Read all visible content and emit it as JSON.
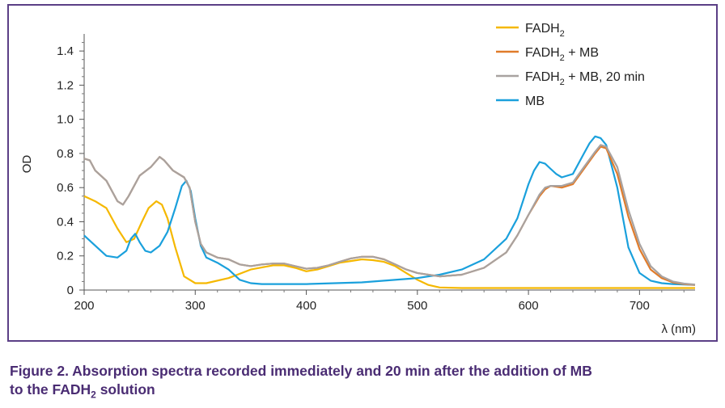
{
  "caption": {
    "line1": "Figure 2. Absorption spectra recorded immediately and 20 min after the addition of MB",
    "line2_prefix": "to the FADH",
    "line2_sub": "2",
    "line2_suffix": " solution"
  },
  "legend": [
    {
      "main": "FADH",
      "sub": "2",
      "rest": ""
    },
    {
      "main": "FADH",
      "sub": "2",
      "rest": " + MB"
    },
    {
      "main": "FADH",
      "sub": "2",
      "rest": " + MB, 20 min"
    },
    {
      "main": "MB",
      "sub": "",
      "rest": ""
    }
  ],
  "chart_data": {
    "type": "line",
    "title": "",
    "xlabel": "λ (nm)",
    "ylabel": "OD",
    "xlim": [
      200,
      750
    ],
    "ylim": [
      0,
      1.5
    ],
    "xticks": [
      "200",
      "300",
      "400",
      "500",
      "600",
      "700"
    ],
    "yticks": [
      "0",
      "0.2",
      "0.4",
      "0.6",
      "0.8",
      "1.0",
      "1.2",
      "1.4"
    ],
    "grid": false,
    "legend_position": "top-right",
    "series": [
      {
        "name": "FADH2",
        "color": "#f5b800",
        "x": [
          200,
          210,
          220,
          230,
          238,
          245,
          252,
          258,
          265,
          270,
          275,
          282,
          290,
          300,
          310,
          330,
          350,
          370,
          380,
          390,
          400,
          410,
          420,
          430,
          440,
          450,
          460,
          470,
          480,
          490,
          500,
          510,
          520,
          540,
          600,
          700,
          750
        ],
        "y": [
          0.55,
          0.52,
          0.48,
          0.36,
          0.28,
          0.3,
          0.4,
          0.48,
          0.52,
          0.5,
          0.42,
          0.25,
          0.08,
          0.04,
          0.04,
          0.07,
          0.12,
          0.145,
          0.145,
          0.13,
          0.11,
          0.12,
          0.14,
          0.16,
          0.17,
          0.18,
          0.175,
          0.165,
          0.14,
          0.1,
          0.06,
          0.03,
          0.015,
          0.012,
          0.012,
          0.012,
          0.012
        ]
      },
      {
        "name": "FADH2 + MB",
        "color": "#e07b2a",
        "x": [
          200,
          205,
          210,
          220,
          230,
          235,
          240,
          250,
          260,
          268,
          272,
          280,
          290,
          295,
          300,
          305,
          310,
          320,
          330,
          340,
          350,
          360,
          370,
          380,
          390,
          400,
          410,
          420,
          430,
          440,
          450,
          460,
          470,
          480,
          490,
          500,
          520,
          540,
          560,
          580,
          590,
          600,
          610,
          615,
          620,
          630,
          640,
          650,
          660,
          665,
          670,
          680,
          690,
          700,
          710,
          720,
          730,
          740,
          750
        ],
        "y": [
          0.77,
          0.76,
          0.7,
          0.64,
          0.52,
          0.5,
          0.55,
          0.67,
          0.72,
          0.78,
          0.76,
          0.7,
          0.66,
          0.6,
          0.4,
          0.27,
          0.22,
          0.19,
          0.18,
          0.15,
          0.14,
          0.15,
          0.155,
          0.155,
          0.14,
          0.125,
          0.13,
          0.145,
          0.165,
          0.185,
          0.195,
          0.195,
          0.18,
          0.15,
          0.12,
          0.1,
          0.08,
          0.09,
          0.13,
          0.22,
          0.32,
          0.44,
          0.55,
          0.59,
          0.61,
          0.6,
          0.62,
          0.71,
          0.8,
          0.84,
          0.83,
          0.68,
          0.43,
          0.24,
          0.12,
          0.07,
          0.045,
          0.035,
          0.03
        ]
      },
      {
        "name": "FADH2 + MB, 20 min",
        "color": "#a8a2a0",
        "x": [
          200,
          205,
          210,
          220,
          230,
          235,
          240,
          250,
          260,
          268,
          272,
          280,
          290,
          295,
          300,
          305,
          310,
          320,
          330,
          340,
          350,
          360,
          370,
          380,
          390,
          400,
          410,
          420,
          430,
          440,
          450,
          460,
          470,
          480,
          490,
          500,
          520,
          540,
          560,
          580,
          590,
          600,
          610,
          615,
          620,
          630,
          640,
          650,
          660,
          665,
          670,
          680,
          690,
          700,
          710,
          720,
          730,
          740,
          750
        ],
        "y": [
          0.77,
          0.76,
          0.7,
          0.64,
          0.52,
          0.5,
          0.55,
          0.67,
          0.72,
          0.78,
          0.76,
          0.7,
          0.66,
          0.6,
          0.4,
          0.27,
          0.22,
          0.19,
          0.18,
          0.15,
          0.14,
          0.15,
          0.155,
          0.155,
          0.14,
          0.125,
          0.13,
          0.145,
          0.165,
          0.185,
          0.195,
          0.195,
          0.18,
          0.15,
          0.12,
          0.1,
          0.08,
          0.09,
          0.13,
          0.22,
          0.32,
          0.44,
          0.56,
          0.6,
          0.61,
          0.61,
          0.63,
          0.72,
          0.81,
          0.85,
          0.84,
          0.72,
          0.47,
          0.27,
          0.14,
          0.08,
          0.05,
          0.038,
          0.032
        ]
      },
      {
        "name": "MB",
        "color": "#1aa0dc",
        "x": [
          200,
          210,
          220,
          230,
          238,
          242,
          246,
          250,
          255,
          260,
          268,
          275,
          282,
          288,
          292,
          296,
          300,
          305,
          310,
          320,
          330,
          340,
          350,
          360,
          400,
          450,
          500,
          520,
          540,
          560,
          580,
          590,
          600,
          605,
          610,
          615,
          620,
          625,
          630,
          640,
          650,
          655,
          660,
          665,
          670,
          680,
          690,
          700,
          710,
          720,
          730,
          740,
          750
        ],
        "y": [
          0.32,
          0.26,
          0.2,
          0.19,
          0.23,
          0.3,
          0.33,
          0.28,
          0.23,
          0.22,
          0.26,
          0.34,
          0.48,
          0.61,
          0.64,
          0.58,
          0.42,
          0.26,
          0.19,
          0.16,
          0.12,
          0.06,
          0.04,
          0.035,
          0.035,
          0.045,
          0.07,
          0.09,
          0.12,
          0.18,
          0.3,
          0.42,
          0.62,
          0.7,
          0.75,
          0.74,
          0.71,
          0.68,
          0.66,
          0.68,
          0.8,
          0.86,
          0.9,
          0.89,
          0.85,
          0.6,
          0.25,
          0.1,
          0.055,
          0.04,
          0.035,
          0.032,
          0.03
        ]
      }
    ]
  }
}
